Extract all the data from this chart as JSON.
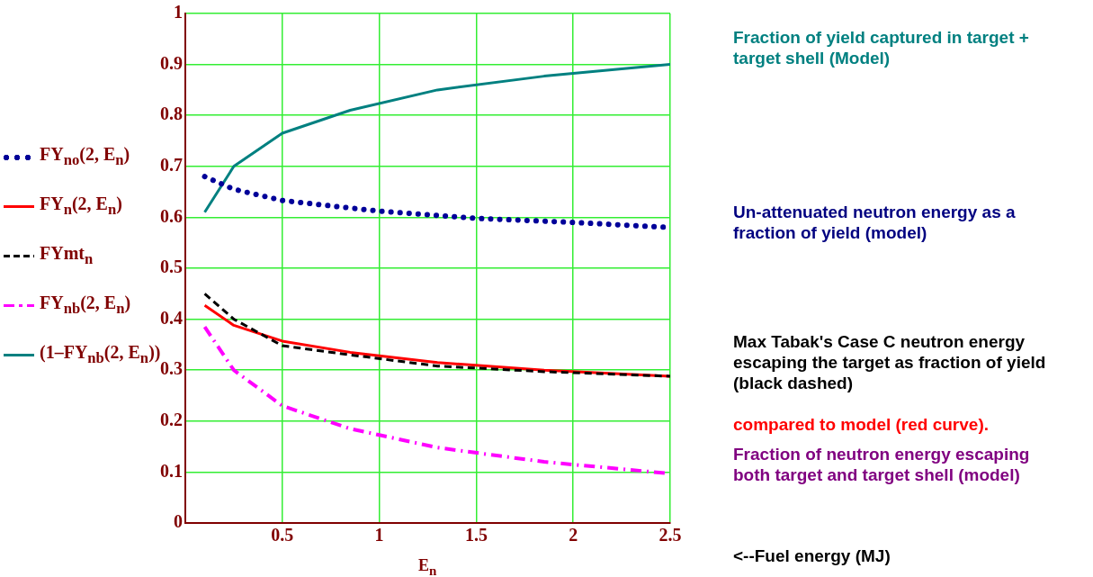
{
  "chart_data": {
    "type": "line",
    "xlabel": "E$_{n}$",
    "xlim": [
      0,
      2.5
    ],
    "xticks": [
      0.5,
      1,
      1.5,
      2,
      2.5
    ],
    "ylim": [
      0,
      1
    ],
    "yticks": [
      0,
      0.1,
      0.2,
      0.3,
      0.4,
      0.5,
      0.6,
      0.7,
      0.8,
      0.9,
      1
    ],
    "grid": true,
    "legend": "left",
    "marker": "none",
    "x": [
      0.1,
      0.25,
      0.5,
      0.85,
      1.3,
      1.85,
      2.5
    ],
    "series": [
      {
        "name": "FY$_{no}$(2, E$_{n}$)",
        "color": "#000099",
        "line_style": "dotted",
        "x": [
          0.1,
          0.25,
          0.5,
          1,
          1.5,
          2,
          2.5
        ],
        "values": [
          0.68,
          0.655,
          0.633,
          0.612,
          0.598,
          0.59,
          0.58
        ]
      },
      {
        "name": "FY$_{n}$(2, E$_{n}$)",
        "color": "#ff0000",
        "line_style": "solid",
        "values": [
          0.427,
          0.388,
          0.357,
          0.335,
          0.315,
          0.3,
          0.288
        ]
      },
      {
        "name": "FYmt$_{n}$",
        "color": "#000000",
        "line_style": "dashed",
        "values": [
          0.45,
          0.4,
          0.348,
          0.33,
          0.308,
          0.297,
          0.288
        ]
      },
      {
        "name": "FY$_{nb}$(2, E$_{n}$)",
        "color": "#ff00ff",
        "line_style": "dashdot",
        "values": [
          0.385,
          0.3,
          0.23,
          0.185,
          0.148,
          0.12,
          0.097
        ]
      },
      {
        "name": "(1–FY$_{nb}$(2, E$_{n}$))",
        "color": "#008080",
        "line_style": "solid",
        "values": [
          0.61,
          0.7,
          0.765,
          0.81,
          0.85,
          0.877,
          0.9
        ]
      }
    ],
    "annotations": [
      "Fraction of yield captured in target + target shell (Model)",
      "Un-attenuated neutron energy as a fraction of yield (model)",
      "Max Tabak's Case C neutron energy escaping the target as fraction of yield (black dashed)",
      "compared to model (red curve).",
      "Fraction of neutron energy escaping both target and target shell (model)",
      "<--Fuel energy (MJ)"
    ]
  }
}
